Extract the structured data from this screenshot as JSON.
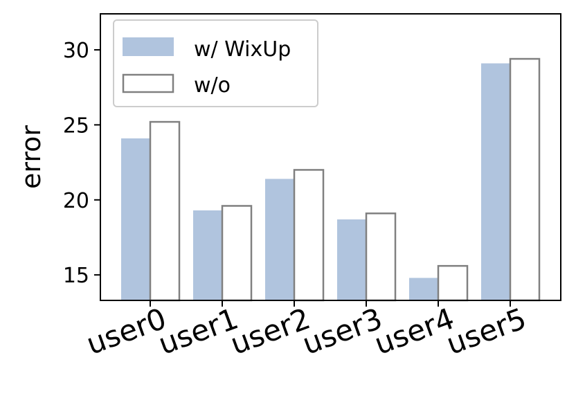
{
  "chart_data": {
    "type": "bar",
    "title": "",
    "xlabel": "",
    "ylabel": "error",
    "ylim": [
      13.3,
      32.4
    ],
    "yticks": [
      15,
      20,
      25,
      30
    ],
    "grid": false,
    "legend_position": "top-left",
    "categories": [
      "user0",
      "user1",
      "user2",
      "user3",
      "user4",
      "user5"
    ],
    "series": [
      {
        "name": "w/ WixUp",
        "style": "filled",
        "color": "#b0c4de",
        "values": [
          24.1,
          19.3,
          21.4,
          18.7,
          14.8,
          29.1
        ]
      },
      {
        "name": "w/o",
        "style": "outline",
        "color": "#808080",
        "values": [
          25.2,
          19.6,
          22.0,
          19.1,
          15.6,
          29.4
        ]
      }
    ]
  }
}
